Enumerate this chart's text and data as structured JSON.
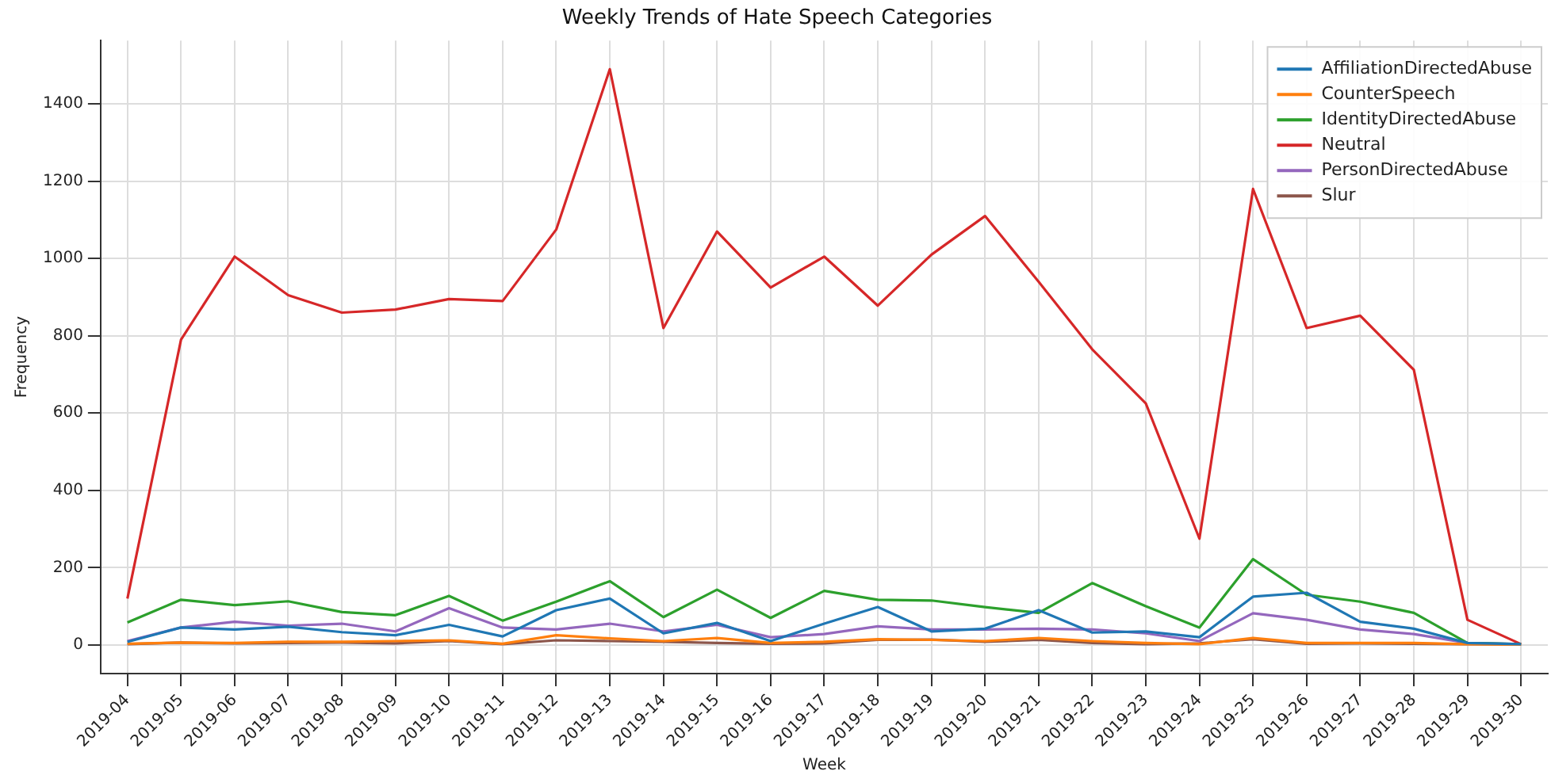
{
  "chart_data": {
    "type": "line",
    "title": "Weekly Trends of Hate Speech Categories",
    "xlabel": "Week",
    "ylabel": "Frequency",
    "categories": [
      "2019-04",
      "2019-05",
      "2019-06",
      "2019-07",
      "2019-08",
      "2019-09",
      "2019-10",
      "2019-11",
      "2019-12",
      "2019-13",
      "2019-14",
      "2019-15",
      "2019-16",
      "2019-17",
      "2019-18",
      "2019-19",
      "2019-20",
      "2019-21",
      "2019-22",
      "2019-23",
      "2019-24",
      "2019-25",
      "2019-26",
      "2019-27",
      "2019-28",
      "2019-29",
      "2019-30"
    ],
    "series": [
      {
        "name": "AffiliationDirectedAbuse",
        "color": "#1f77b4",
        "values": [
          8,
          45,
          40,
          47,
          33,
          25,
          52,
          22,
          90,
          120,
          30,
          57,
          10,
          55,
          98,
          35,
          42,
          90,
          32,
          35,
          20,
          125,
          135,
          60,
          42,
          5,
          2
        ]
      },
      {
        "name": "CounterSpeech",
        "color": "#ff7f0e",
        "values": [
          3,
          6,
          5,
          8,
          8,
          10,
          12,
          3,
          25,
          17,
          10,
          18,
          5,
          8,
          15,
          13,
          10,
          18,
          10,
          5,
          2,
          18,
          5,
          5,
          5,
          2,
          1
        ]
      },
      {
        "name": "IdentityDirectedAbuse",
        "color": "#2ca02c",
        "values": [
          58,
          117,
          103,
          113,
          85,
          77,
          127,
          63,
          112,
          165,
          72,
          143,
          70,
          140,
          117,
          115,
          98,
          83,
          160,
          100,
          45,
          222,
          130,
          112,
          83,
          5,
          2
        ]
      },
      {
        "name": "Neutral",
        "color": "#d62728",
        "values": [
          120,
          790,
          1005,
          905,
          860,
          868,
          895,
          890,
          1075,
          1490,
          820,
          1070,
          925,
          1005,
          878,
          1010,
          1110,
          940,
          765,
          625,
          275,
          1180,
          820,
          852,
          712,
          65,
          2
        ]
      },
      {
        "name": "PersonDirectedAbuse",
        "color": "#9467bd",
        "values": [
          10,
          45,
          60,
          50,
          55,
          35,
          95,
          45,
          40,
          55,
          35,
          52,
          20,
          28,
          48,
          40,
          40,
          42,
          40,
          30,
          10,
          82,
          65,
          40,
          28,
          5,
          2
        ]
      },
      {
        "name": "Slur",
        "color": "#8c564b",
        "values": [
          2,
          6,
          4,
          5,
          6,
          4,
          10,
          2,
          12,
          10,
          8,
          5,
          3,
          4,
          13,
          14,
          8,
          13,
          5,
          2,
          4,
          15,
          3,
          4,
          3,
          2,
          1
        ]
      }
    ],
    "ylim": [
      -74,
      1564
    ],
    "yticks": [
      0,
      200,
      400,
      600,
      800,
      1000,
      1200,
      1400
    ],
    "grid": true,
    "legend": "top right",
    "marker": "none",
    "line_style": "solid"
  }
}
